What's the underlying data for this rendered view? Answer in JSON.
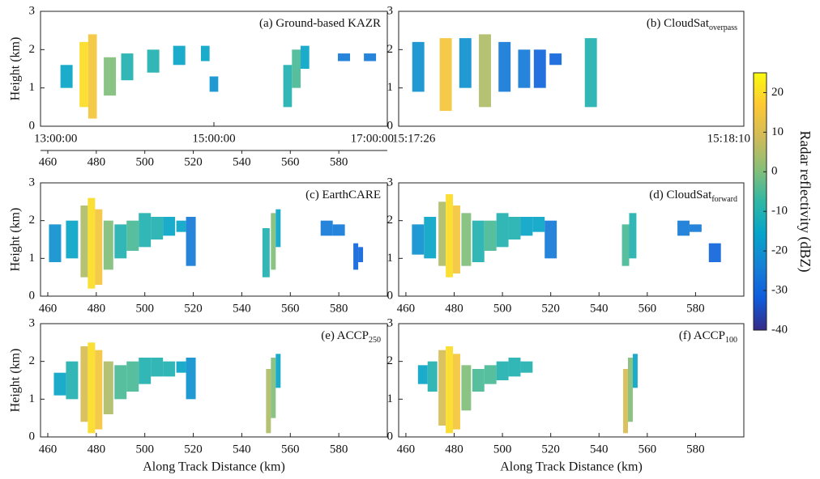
{
  "chart_data": [
    {
      "type": "curtain",
      "title": "(a) Ground-based KAZR",
      "ylabel": "Height (km)",
      "xlim": [
        13,
        17
      ],
      "xticks": [
        {
          "value": 13,
          "label": "13:00:00"
        },
        {
          "value": 15,
          "label": "15:00:00"
        },
        {
          "value": 17,
          "label": "17:00:00"
        }
      ],
      "x2lim": [
        457,
        600
      ],
      "x2ticks": [
        460,
        480,
        500,
        520,
        540,
        560,
        580
      ],
      "ylim": [
        0,
        3
      ],
      "yticks": [
        0,
        1,
        2,
        3
      ],
      "columns": {
        "x": [
          13.3,
          13.5,
          13.6,
          13.8,
          14.0,
          14.3,
          14.6,
          14.9,
          15.0,
          15.85,
          15.95,
          16.05,
          16.5,
          16.8
        ],
        "base": [
          1.0,
          0.5,
          0.2,
          0.8,
          1.2,
          1.4,
          1.6,
          1.7,
          0.9,
          0.5,
          1.0,
          1.5,
          1.7,
          1.7
        ],
        "top": [
          1.6,
          2.2,
          2.4,
          1.8,
          1.9,
          2.0,
          2.1,
          2.1,
          1.3,
          1.6,
          2.0,
          2.1,
          1.9,
          1.9
        ],
        "dbz": [
          -15,
          20,
          15,
          0,
          -10,
          -10,
          -15,
          -15,
          -20,
          -10,
          -5,
          -15,
          -25,
          -25
        ]
      }
    },
    {
      "type": "curtain",
      "title": "(b) CloudSat",
      "title_sub": "overpass",
      "xlim": [
        55046,
        55090
      ],
      "xticks": [
        {
          "value": 55046,
          "label": "15:17:26"
        },
        {
          "value": 55090,
          "label": "15:18:10"
        }
      ],
      "ylim": [
        0,
        3
      ],
      "yticks": [
        0,
        1,
        2,
        3
      ],
      "columns": {
        "x": [
          55048.5,
          55052,
          55054.5,
          55057,
          55059.5,
          55062,
          55064,
          55066,
          55070.5
        ],
        "base": [
          0.9,
          0.4,
          1.0,
          0.5,
          0.9,
          1.0,
          1.0,
          1.6,
          0.5
        ],
        "top": [
          2.2,
          2.3,
          2.3,
          2.4,
          2.2,
          2.0,
          2.0,
          1.9,
          2.3
        ],
        "dbz": [
          -20,
          15,
          -20,
          5,
          -25,
          -25,
          -30,
          -30,
          -10
        ]
      }
    },
    {
      "type": "curtain",
      "title": "(c) EarthCARE",
      "ylabel": "Height (km)",
      "xlim": [
        457,
        600
      ],
      "xticks": [
        460,
        480,
        500,
        520,
        540,
        560,
        580
      ],
      "ylim": [
        0,
        3
      ],
      "yticks": [
        0,
        1,
        2,
        3
      ],
      "columns": {
        "x": [
          463,
          470,
          475,
          478,
          481,
          485,
          490,
          495,
          500,
          505,
          510,
          515,
          519,
          550,
          553,
          555,
          575,
          580,
          587,
          589
        ],
        "base": [
          0.9,
          1.0,
          0.5,
          0.2,
          0.3,
          0.7,
          1.0,
          1.2,
          1.3,
          1.5,
          1.6,
          1.7,
          0.8,
          0.5,
          0.7,
          1.3,
          1.6,
          1.6,
          0.7,
          0.9
        ],
        "top": [
          1.9,
          2.0,
          2.4,
          2.6,
          2.3,
          2.0,
          1.9,
          2.0,
          2.2,
          2.1,
          2.1,
          2.0,
          2.1,
          1.8,
          2.2,
          2.3,
          2.0,
          1.9,
          1.4,
          1.3
        ],
        "dbz": [
          -20,
          -15,
          5,
          20,
          15,
          0,
          -10,
          -5,
          -10,
          -10,
          -15,
          -15,
          -25,
          -10,
          0,
          -15,
          -25,
          -25,
          -30,
          -30
        ]
      }
    },
    {
      "type": "curtain",
      "title": "(d) CloudSat",
      "title_sub": "forward",
      "xlim": [
        457,
        600
      ],
      "xticks": [
        460,
        480,
        500,
        520,
        540,
        560,
        580
      ],
      "ylim": [
        0,
        3
      ],
      "yticks": [
        0,
        1,
        2,
        3
      ],
      "columns": {
        "x": [
          465,
          470,
          475,
          478,
          481,
          485,
          490,
          495,
          500,
          505,
          510,
          515,
          520,
          551,
          554,
          575,
          580,
          588
        ],
        "base": [
          1.1,
          1.0,
          0.8,
          0.5,
          0.6,
          0.8,
          0.9,
          1.2,
          1.3,
          1.5,
          1.6,
          1.7,
          1.0,
          0.8,
          1.0,
          1.6,
          1.7,
          0.9
        ],
        "top": [
          1.9,
          2.1,
          2.5,
          2.7,
          2.4,
          2.2,
          2.0,
          2.0,
          2.2,
          2.1,
          2.1,
          2.1,
          2.0,
          1.9,
          2.2,
          2.0,
          1.9,
          1.4
        ],
        "dbz": [
          -20,
          -15,
          5,
          20,
          15,
          0,
          -10,
          -5,
          -10,
          -10,
          -15,
          -15,
          -25,
          -5,
          -10,
          -25,
          -25,
          -30
        ]
      }
    },
    {
      "type": "curtain",
      "title": "(e) ACCP",
      "title_sub": "250",
      "ylabel": "Height (km)",
      "xlabel": "Along Track Distance (km)",
      "xlim": [
        457,
        600
      ],
      "xticks": [
        460,
        480,
        500,
        520,
        540,
        560,
        580
      ],
      "ylim": [
        0,
        3
      ],
      "yticks": [
        0,
        1,
        2,
        3
      ],
      "columns": {
        "x": [
          465,
          470,
          475,
          478,
          481,
          485,
          490,
          495,
          500,
          505,
          510,
          515,
          519,
          551,
          553,
          555
        ],
        "base": [
          1.1,
          1.0,
          0.4,
          0.1,
          0.2,
          0.6,
          1.0,
          1.2,
          1.4,
          1.6,
          1.6,
          1.7,
          1.0,
          0.1,
          0.5,
          1.3
        ],
        "top": [
          1.7,
          2.0,
          2.4,
          2.5,
          2.3,
          2.0,
          1.9,
          2.0,
          2.1,
          2.1,
          2.0,
          2.0,
          2.1,
          1.8,
          2.1,
          2.2
        ],
        "dbz": [
          -15,
          -10,
          10,
          20,
          15,
          5,
          -5,
          -5,
          -10,
          -10,
          -10,
          -15,
          -20,
          5,
          0,
          -15
        ]
      }
    },
    {
      "type": "curtain",
      "title": "(f) ACCP",
      "title_sub": "100",
      "xlabel": "Along Track Distance (km)",
      "xlim": [
        457,
        600
      ],
      "xticks": [
        460,
        480,
        500,
        520,
        540,
        560,
        580
      ],
      "ylim": [
        0,
        3
      ],
      "yticks": [
        0,
        1,
        2,
        3
      ],
      "columns": {
        "x": [
          467,
          471,
          475,
          478,
          481,
          485,
          490,
          495,
          500,
          505,
          510,
          551,
          553,
          555
        ],
        "base": [
          1.4,
          1.2,
          0.3,
          0.1,
          0.2,
          0.7,
          1.2,
          1.4,
          1.5,
          1.6,
          1.7,
          0.1,
          0.4,
          1.3
        ],
        "top": [
          1.9,
          2.0,
          2.3,
          2.4,
          2.2,
          1.9,
          1.8,
          1.9,
          2.0,
          2.1,
          2.0,
          1.8,
          2.1,
          2.2
        ],
        "dbz": [
          -15,
          -10,
          10,
          20,
          15,
          0,
          -5,
          -5,
          -10,
          -10,
          -10,
          10,
          0,
          -15
        ]
      }
    }
  ],
  "colorbar": {
    "label": "Radar reflectivity (dBZ)",
    "lim": [
      -40,
      25
    ],
    "ticks": [
      -40,
      -30,
      -20,
      -10,
      0,
      10,
      20
    ],
    "colors": [
      "#352a87",
      "#0f5cdd",
      "#1481d6",
      "#06a4ca",
      "#2eb7a4",
      "#87bf77",
      "#d1bb59",
      "#fec832",
      "#f9fb0e"
    ]
  }
}
